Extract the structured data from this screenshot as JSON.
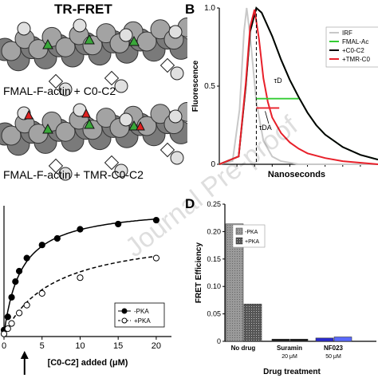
{
  "panelA": {
    "title": "TR-FRET",
    "caption1": "FMAL-F-actin + C0-C2",
    "caption2": "FMAL-F-actin + TMR-C0-C2"
  },
  "watermark": "Journal Pre-proof",
  "chart_data": [
    {
      "id": "B",
      "panel_letter": "B",
      "type": "line",
      "xlabel": "Nanoseconds",
      "ylabel": "Fluorescence",
      "xlim": [
        0,
        18
      ],
      "ylim": [
        0,
        1
      ],
      "yticks": [
        "0",
        "0.5",
        "1.0"
      ],
      "legend": {
        "placement": "top-right",
        "entries": [
          "IRF",
          "FMAL-Ac",
          "+C0-C2",
          "+TMR-C0"
        ]
      },
      "annotations": [
        "τD",
        "τDA"
      ],
      "series": [
        {
          "name": "IRF",
          "color": "#c8c8c8",
          "x": [
            0,
            1.5,
            2.3,
            2.8,
            3.1,
            3.5,
            4.2,
            5,
            6,
            7,
            8,
            9,
            18
          ],
          "y": [
            0,
            0.02,
            0.35,
            0.85,
            1.0,
            0.82,
            0.4,
            0.15,
            0.05,
            0.02,
            0.01,
            0,
            0
          ]
        },
        {
          "name": "FMAL-Ac",
          "color": "#33cc33",
          "x": [
            0,
            2.2,
            3,
            3.5,
            4.2,
            4.8,
            6,
            7,
            8,
            9,
            10,
            11,
            12,
            14,
            16,
            18
          ],
          "y": [
            0,
            0.05,
            0.5,
            0.85,
            1.0,
            0.97,
            0.82,
            0.67,
            0.54,
            0.43,
            0.33,
            0.25,
            0.19,
            0.11,
            0.06,
            0.03
          ]
        },
        {
          "name": "+C0-C2",
          "color": "#000000",
          "x": [
            0,
            2.2,
            3,
            3.5,
            4.2,
            4.8,
            6,
            7,
            8,
            9,
            10,
            11,
            12,
            14,
            16,
            18
          ],
          "y": [
            0,
            0.05,
            0.5,
            0.85,
            1.0,
            0.97,
            0.82,
            0.67,
            0.54,
            0.43,
            0.33,
            0.25,
            0.19,
            0.11,
            0.06,
            0.03
          ]
        },
        {
          "name": "+TMR-C0",
          "color": "#e8202a",
          "x": [
            0,
            2.2,
            3,
            3.5,
            4,
            4.5,
            5,
            5.5,
            6,
            7,
            8,
            9,
            10,
            12,
            14,
            18
          ],
          "y": [
            0,
            0.05,
            0.52,
            0.88,
            0.99,
            0.8,
            0.55,
            0.4,
            0.3,
            0.2,
            0.14,
            0.1,
            0.07,
            0.04,
            0.02,
            0
          ]
        }
      ]
    },
    {
      "id": "C",
      "type": "scatter",
      "xlabel": "[C0-C2] added (μM)",
      "xlim": [
        0,
        22
      ],
      "xticks": [
        "0",
        "5",
        "10",
        "15",
        "20"
      ],
      "legend": {
        "placement": "bottom-right",
        "entries": [
          "-PKA",
          "+PKA"
        ]
      },
      "series": [
        {
          "name": "-PKA",
          "marker": "filled",
          "x": [
            0,
            0.5,
            1,
            1.5,
            2,
            3,
            5,
            7,
            10,
            15,
            20
          ],
          "y": [
            0.05,
            0.15,
            0.3,
            0.42,
            0.5,
            0.6,
            0.7,
            0.75,
            0.82,
            0.86,
            0.89
          ]
        },
        {
          "name": "+PKA",
          "marker": "open",
          "x": [
            0,
            0.5,
            1,
            2,
            3,
            5,
            10,
            20
          ],
          "y": [
            0.02,
            0.06,
            0.1,
            0.18,
            0.24,
            0.33,
            0.45,
            0.6
          ]
        }
      ]
    },
    {
      "id": "D",
      "panel_letter": "D",
      "type": "bar",
      "xlabel": "Drug treatment",
      "ylabel": "FRET Efficiency",
      "ylim": [
        0,
        0.25
      ],
      "yticks": [
        "0",
        "0.05",
        "0.10",
        "0.15",
        "0.20",
        "0.25"
      ],
      "categories": [
        "No drug",
        "Suramin\n20 μM",
        "NF023\n50 μM"
      ],
      "legend": {
        "placement": "top-left",
        "entries": [
          "-PKA",
          "+PKA"
        ]
      },
      "series": [
        {
          "name": "-PKA",
          "values": [
            0.214,
            0.004,
            0.006
          ]
        },
        {
          "name": "+PKA",
          "values": [
            0.068,
            0.004,
            0.008
          ]
        }
      ]
    }
  ]
}
